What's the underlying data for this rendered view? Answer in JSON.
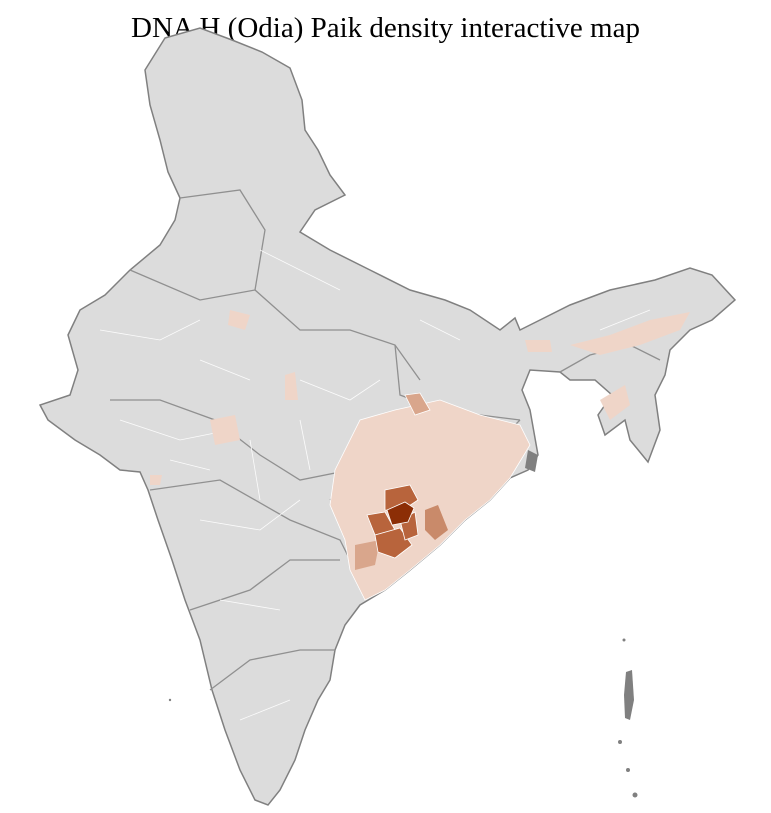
{
  "title": "DNA H (Odia) Paik density interactive map",
  "colors": {
    "base_fill": "#dcdcdc",
    "district_border": "#ffffff",
    "state_border": "#808080",
    "density_low": "#efd5c8",
    "density_mid_low": "#d9a68c",
    "density_mid": "#b8643c",
    "density_high": "#8c2e06"
  }
}
